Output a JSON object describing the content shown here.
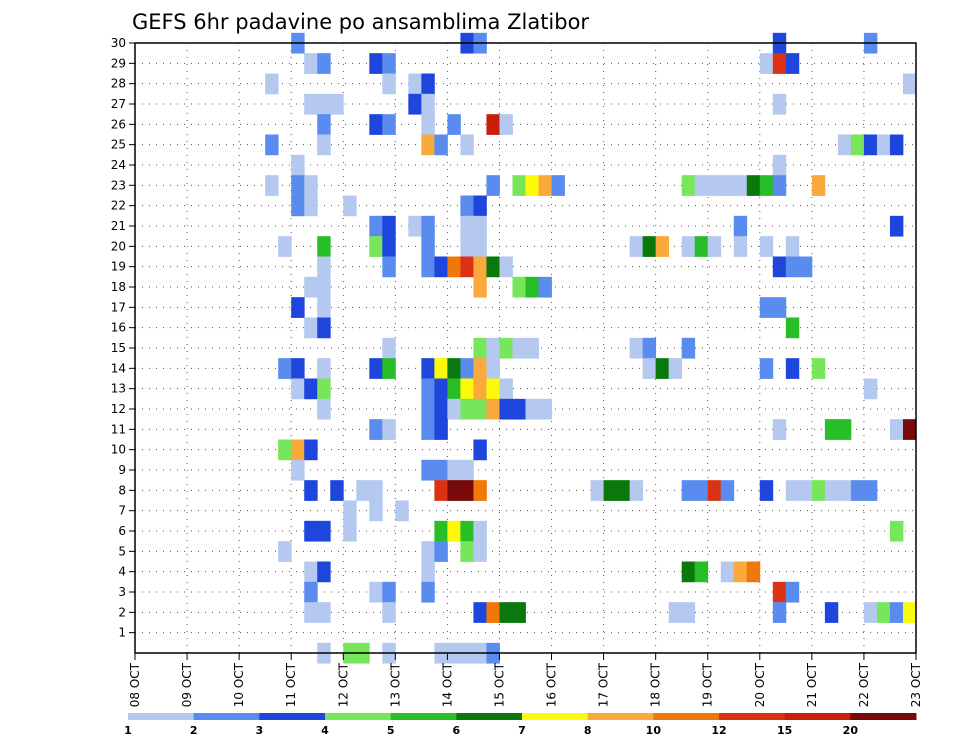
{
  "chart_data": {
    "type": "heatmap",
    "title": "GEFS 6hr padavine po ansamblima Zlatibor",
    "xlabel": "",
    "ylabel": "",
    "x_ticks": [
      "08 OCT",
      "09 OCT",
      "10 OCT",
      "11 OCT",
      "12 OCT",
      "13 OCT",
      "14 OCT",
      "15 OCT",
      "16 OCT",
      "17 OCT",
      "18 OCT",
      "19 OCT",
      "20 OCT",
      "21 OCT",
      "22 OCT",
      "23 OCT"
    ],
    "x_range": [
      "2024-10-08T00",
      "2024-10-23T00"
    ],
    "x_step_hours": 6,
    "y_ticks": [
      1,
      2,
      3,
      4,
      5,
      6,
      7,
      8,
      9,
      10,
      11,
      12,
      13,
      14,
      15,
      16,
      17,
      18,
      19,
      20,
      21,
      22,
      23,
      24,
      25,
      26,
      27,
      28,
      29,
      30
    ],
    "y_range": [
      0,
      30
    ],
    "grid": true,
    "colorbar": {
      "levels": [
        1,
        2,
        3,
        4,
        5,
        6,
        7,
        8,
        10,
        12,
        15,
        20
      ],
      "colors": [
        "#b4c8f0",
        "#5a8cf0",
        "#1e46dc",
        "#78e65a",
        "#28be28",
        "#0a780a",
        "#fafa0a",
        "#faaa3c",
        "#f0780a",
        "#dc3214",
        "#c81e0a",
        "#780a0a"
      ]
    },
    "series_format": "member, date-time of 6h period start, class index (0 = 1–2 ... 11 = >20)",
    "cells": [
      [
        0,
        "2024-10-11T12",
        0
      ],
      [
        0,
        "2024-10-12T00",
        3
      ],
      [
        0,
        "2024-10-12T06",
        3
      ],
      [
        0,
        "2024-10-12T18",
        0
      ],
      [
        0,
        "2024-10-13T18",
        0
      ],
      [
        0,
        "2024-10-14T00",
        0
      ],
      [
        0,
        "2024-10-14T06",
        0
      ],
      [
        0,
        "2024-10-14T12",
        0
      ],
      [
        0,
        "2024-10-14T18",
        1
      ],
      [
        30,
        "2024-10-11T00",
        1
      ],
      [
        30,
        "2024-10-14T06",
        2
      ],
      [
        30,
        "2024-10-14T12",
        1
      ],
      [
        30,
        "2024-10-20T06",
        2
      ],
      [
        30,
        "2024-10-22T00",
        1
      ],
      [
        29,
        "2024-10-11T06",
        0
      ],
      [
        29,
        "2024-10-11T12",
        1
      ],
      [
        29,
        "2024-10-12T12",
        2
      ],
      [
        29,
        "2024-10-12T18",
        1
      ],
      [
        29,
        "2024-10-20T00",
        0
      ],
      [
        29,
        "2024-10-20T06",
        9
      ],
      [
        29,
        "2024-10-20T12",
        2
      ],
      [
        28,
        "2024-10-10T12",
        0
      ],
      [
        28,
        "2024-10-12T18",
        0
      ],
      [
        28,
        "2024-10-13T06",
        0
      ],
      [
        28,
        "2024-10-13T12",
        2
      ],
      [
        28,
        "2024-10-22T18",
        0
      ],
      [
        27,
        "2024-10-11T06",
        0
      ],
      [
        27,
        "2024-10-11T12",
        0
      ],
      [
        27,
        "2024-10-11T18",
        0
      ],
      [
        27,
        "2024-10-13T06",
        2
      ],
      [
        27,
        "2024-10-13T12",
        0
      ],
      [
        27,
        "2024-10-20T06",
        0
      ],
      [
        26,
        "2024-10-11T12",
        1
      ],
      [
        26,
        "2024-10-12T12",
        2
      ],
      [
        26,
        "2024-10-12T18",
        1
      ],
      [
        26,
        "2024-10-13T12",
        0
      ],
      [
        26,
        "2024-10-14T00",
        1
      ],
      [
        26,
        "2024-10-14T18",
        10
      ],
      [
        26,
        "2024-10-15T00",
        0
      ],
      [
        25,
        "2024-10-10T12",
        1
      ],
      [
        25,
        "2024-10-11T12",
        0
      ],
      [
        25,
        "2024-10-13T12",
        7
      ],
      [
        25,
        "2024-10-13T18",
        1
      ],
      [
        25,
        "2024-10-14T06",
        0
      ],
      [
        25,
        "2024-10-21T12",
        0
      ],
      [
        25,
        "2024-10-21T18",
        3
      ],
      [
        25,
        "2024-10-22T00",
        2
      ],
      [
        25,
        "2024-10-22T06",
        0
      ],
      [
        25,
        "2024-10-22T12",
        2
      ],
      [
        24,
        "2024-10-11T00",
        0
      ],
      [
        24,
        "2024-10-20T06",
        0
      ],
      [
        23,
        "2024-10-10T12",
        0
      ],
      [
        23,
        "2024-10-11T00",
        1
      ],
      [
        23,
        "2024-10-11T06",
        0
      ],
      [
        23,
        "2024-10-14T18",
        1
      ],
      [
        23,
        "2024-10-15T06",
        3
      ],
      [
        23,
        "2024-10-15T12",
        6
      ],
      [
        23,
        "2024-10-15T18",
        7
      ],
      [
        23,
        "2024-10-16T00",
        1
      ],
      [
        23,
        "2024-10-18T12",
        3
      ],
      [
        23,
        "2024-10-18T18",
        0
      ],
      [
        23,
        "2024-10-19T00",
        0
      ],
      [
        23,
        "2024-10-19T06",
        0
      ],
      [
        23,
        "2024-10-19T12",
        0
      ],
      [
        23,
        "2024-10-19T18",
        5
      ],
      [
        23,
        "2024-10-20T00",
        4
      ],
      [
        23,
        "2024-10-20T06",
        1
      ],
      [
        23,
        "2024-10-21T00",
        7
      ],
      [
        22,
        "2024-10-11T00",
        1
      ],
      [
        22,
        "2024-10-11T06",
        0
      ],
      [
        22,
        "2024-10-12T00",
        0
      ],
      [
        22,
        "2024-10-14T06",
        1
      ],
      [
        22,
        "2024-10-14T12",
        2
      ],
      [
        21,
        "2024-10-12T12",
        1
      ],
      [
        21,
        "2024-10-12T18",
        2
      ],
      [
        21,
        "2024-10-13T06",
        0
      ],
      [
        21,
        "2024-10-13T12",
        1
      ],
      [
        21,
        "2024-10-14T06",
        0
      ],
      [
        21,
        "2024-10-14T12",
        0
      ],
      [
        21,
        "2024-10-19T12",
        1
      ],
      [
        21,
        "2024-10-22T12",
        2
      ],
      [
        20,
        "2024-10-10T18",
        0
      ],
      [
        20,
        "2024-10-11T12",
        4
      ],
      [
        20,
        "2024-10-12T12",
        3
      ],
      [
        20,
        "2024-10-12T18",
        2
      ],
      [
        20,
        "2024-10-13T12",
        1
      ],
      [
        20,
        "2024-10-14T06",
        0
      ],
      [
        20,
        "2024-10-14T12",
        0
      ],
      [
        20,
        "2024-10-17T12",
        0
      ],
      [
        20,
        "2024-10-17T18",
        5
      ],
      [
        20,
        "2024-10-18T00",
        7
      ],
      [
        20,
        "2024-10-18T12",
        0
      ],
      [
        20,
        "2024-10-18T18",
        4
      ],
      [
        20,
        "2024-10-19T00",
        0
      ],
      [
        20,
        "2024-10-19T12",
        0
      ],
      [
        20,
        "2024-10-20T00",
        0
      ],
      [
        20,
        "2024-10-20T12",
        0
      ],
      [
        19,
        "2024-10-11T12",
        0
      ],
      [
        19,
        "2024-10-12T18",
        1
      ],
      [
        19,
        "2024-10-13T12",
        1
      ],
      [
        19,
        "2024-10-13T18",
        2
      ],
      [
        19,
        "2024-10-14T00",
        8
      ],
      [
        19,
        "2024-10-14T06",
        9
      ],
      [
        19,
        "2024-10-14T12",
        7
      ],
      [
        19,
        "2024-10-14T18",
        5
      ],
      [
        19,
        "2024-10-15T00",
        0
      ],
      [
        19,
        "2024-10-20T06",
        2
      ],
      [
        19,
        "2024-10-20T12",
        1
      ],
      [
        19,
        "2024-10-20T18",
        1
      ],
      [
        18,
        "2024-10-11T06",
        0
      ],
      [
        18,
        "2024-10-11T12",
        0
      ],
      [
        18,
        "2024-10-14T12",
        7
      ],
      [
        18,
        "2024-10-15T06",
        3
      ],
      [
        18,
        "2024-10-15T12",
        4
      ],
      [
        18,
        "2024-10-15T18",
        1
      ],
      [
        17,
        "2024-10-11T00",
        2
      ],
      [
        17,
        "2024-10-11T12",
        0
      ],
      [
        17,
        "2024-10-20T00",
        1
      ],
      [
        17,
        "2024-10-20T06",
        1
      ],
      [
        16,
        "2024-10-11T06",
        0
      ],
      [
        16,
        "2024-10-11T12",
        2
      ],
      [
        16,
        "2024-10-20T12",
        4
      ],
      [
        15,
        "2024-10-12T18",
        0
      ],
      [
        15,
        "2024-10-14T12",
        3
      ],
      [
        15,
        "2024-10-14T18",
        0
      ],
      [
        15,
        "2024-10-15T00",
        3
      ],
      [
        15,
        "2024-10-15T06",
        0
      ],
      [
        15,
        "2024-10-15T12",
        0
      ],
      [
        15,
        "2024-10-17T12",
        0
      ],
      [
        15,
        "2024-10-17T18",
        1
      ],
      [
        15,
        "2024-10-18T12",
        1
      ],
      [
        14,
        "2024-10-10T18",
        1
      ],
      [
        14,
        "2024-10-11T00",
        2
      ],
      [
        14,
        "2024-10-11T12",
        0
      ],
      [
        14,
        "2024-10-12T12",
        2
      ],
      [
        14,
        "2024-10-12T18",
        4
      ],
      [
        14,
        "2024-10-13T12",
        2
      ],
      [
        14,
        "2024-10-13T18",
        6
      ],
      [
        14,
        "2024-10-14T00",
        5
      ],
      [
        14,
        "2024-10-14T06",
        1
      ],
      [
        14,
        "2024-10-14T12",
        7
      ],
      [
        14,
        "2024-10-14T18",
        0
      ],
      [
        14,
        "2024-10-17T18",
        0
      ],
      [
        14,
        "2024-10-18T00",
        5
      ],
      [
        14,
        "2024-10-18T06",
        0
      ],
      [
        14,
        "2024-10-20T00",
        1
      ],
      [
        14,
        "2024-10-20T12",
        2
      ],
      [
        14,
        "2024-10-21T00",
        3
      ],
      [
        13,
        "2024-10-11T00",
        0
      ],
      [
        13,
        "2024-10-11T06",
        2
      ],
      [
        13,
        "2024-10-11T12",
        3
      ],
      [
        13,
        "2024-10-13T12",
        1
      ],
      [
        13,
        "2024-10-13T18",
        2
      ],
      [
        13,
        "2024-10-14T00",
        4
      ],
      [
        13,
        "2024-10-14T06",
        6
      ],
      [
        13,
        "2024-10-14T12",
        7
      ],
      [
        13,
        "2024-10-14T18",
        6
      ],
      [
        13,
        "2024-10-15T00",
        0
      ],
      [
        13,
        "2024-10-22T00",
        0
      ],
      [
        12,
        "2024-10-11T12",
        0
      ],
      [
        12,
        "2024-10-13T12",
        1
      ],
      [
        12,
        "2024-10-13T18",
        2
      ],
      [
        12,
        "2024-10-14T00",
        0
      ],
      [
        12,
        "2024-10-14T06",
        3
      ],
      [
        12,
        "2024-10-14T12",
        3
      ],
      [
        12,
        "2024-10-14T18",
        7
      ],
      [
        12,
        "2024-10-15T00",
        2
      ],
      [
        12,
        "2024-10-15T06",
        2
      ],
      [
        12,
        "2024-10-15T12",
        0
      ],
      [
        12,
        "2024-10-15T18",
        0
      ],
      [
        11,
        "2024-10-12T12",
        1
      ],
      [
        11,
        "2024-10-12T18",
        0
      ],
      [
        11,
        "2024-10-13T12",
        1
      ],
      [
        11,
        "2024-10-13T18",
        2
      ],
      [
        11,
        "2024-10-20T06",
        0
      ],
      [
        11,
        "2024-10-21T06",
        4
      ],
      [
        11,
        "2024-10-21T12",
        4
      ],
      [
        11,
        "2024-10-22T12",
        0
      ],
      [
        11,
        "2024-10-22T18",
        11
      ],
      [
        10,
        "2024-10-10T18",
        3
      ],
      [
        10,
        "2024-10-11T00",
        7
      ],
      [
        10,
        "2024-10-11T06",
        2
      ],
      [
        10,
        "2024-10-14T12",
        2
      ],
      [
        9,
        "2024-10-11T00",
        0
      ],
      [
        9,
        "2024-10-13T12",
        1
      ],
      [
        9,
        "2024-10-13T18",
        1
      ],
      [
        9,
        "2024-10-14T00",
        0
      ],
      [
        9,
        "2024-10-14T06",
        0
      ],
      [
        8,
        "2024-10-11T06",
        2
      ],
      [
        8,
        "2024-10-11T18",
        2
      ],
      [
        8,
        "2024-10-12T06",
        0
      ],
      [
        8,
        "2024-10-12T12",
        0
      ],
      [
        8,
        "2024-10-13T18",
        9
      ],
      [
        8,
        "2024-10-14T00",
        11
      ],
      [
        8,
        "2024-10-14T06",
        11
      ],
      [
        8,
        "2024-10-14T12",
        8
      ],
      [
        8,
        "2024-10-16T18",
        0
      ],
      [
        8,
        "2024-10-17T00",
        5
      ],
      [
        8,
        "2024-10-17T06",
        5
      ],
      [
        8,
        "2024-10-17T12",
        0
      ],
      [
        8,
        "2024-10-18T12",
        1
      ],
      [
        8,
        "2024-10-18T18",
        1
      ],
      [
        8,
        "2024-10-19T00",
        9
      ],
      [
        8,
        "2024-10-19T06",
        1
      ],
      [
        8,
        "2024-10-20T00",
        2
      ],
      [
        8,
        "2024-10-20T12",
        0
      ],
      [
        8,
        "2024-10-20T18",
        0
      ],
      [
        8,
        "2024-10-21T00",
        3
      ],
      [
        8,
        "2024-10-21T06",
        0
      ],
      [
        8,
        "2024-10-21T12",
        0
      ],
      [
        8,
        "2024-10-21T18",
        1
      ],
      [
        8,
        "2024-10-22T00",
        1
      ],
      [
        7,
        "2024-10-12T00",
        0
      ],
      [
        7,
        "2024-10-12T12",
        0
      ],
      [
        7,
        "2024-10-13T00",
        0
      ],
      [
        6,
        "2024-10-11T06",
        2
      ],
      [
        6,
        "2024-10-11T12",
        2
      ],
      [
        6,
        "2024-10-12T00",
        0
      ],
      [
        6,
        "2024-10-13T18",
        4
      ],
      [
        6,
        "2024-10-14T00",
        6
      ],
      [
        6,
        "2024-10-14T06",
        4
      ],
      [
        6,
        "2024-10-14T12",
        0
      ],
      [
        6,
        "2024-10-22T12",
        3
      ],
      [
        5,
        "2024-10-10T18",
        0
      ],
      [
        5,
        "2024-10-13T12",
        0
      ],
      [
        5,
        "2024-10-13T18",
        1
      ],
      [
        5,
        "2024-10-14T06",
        3
      ],
      [
        5,
        "2024-10-14T12",
        0
      ],
      [
        4,
        "2024-10-11T06",
        0
      ],
      [
        4,
        "2024-10-11T12",
        2
      ],
      [
        4,
        "2024-10-13T12",
        0
      ],
      [
        4,
        "2024-10-18T12",
        5
      ],
      [
        4,
        "2024-10-18T18",
        4
      ],
      [
        4,
        "2024-10-19T06",
        0
      ],
      [
        4,
        "2024-10-19T12",
        7
      ],
      [
        4,
        "2024-10-19T18",
        8
      ],
      [
        3,
        "2024-10-11T06",
        1
      ],
      [
        3,
        "2024-10-12T12",
        0
      ],
      [
        3,
        "2024-10-12T18",
        1
      ],
      [
        3,
        "2024-10-13T12",
        1
      ],
      [
        3,
        "2024-10-20T06",
        9
      ],
      [
        3,
        "2024-10-20T12",
        1
      ],
      [
        2,
        "2024-10-11T06",
        0
      ],
      [
        2,
        "2024-10-11T12",
        0
      ],
      [
        2,
        "2024-10-12T18",
        0
      ],
      [
        2,
        "2024-10-14T12",
        2
      ],
      [
        2,
        "2024-10-14T18",
        8
      ],
      [
        2,
        "2024-10-15T00",
        5
      ],
      [
        2,
        "2024-10-15T06",
        5
      ],
      [
        2,
        "2024-10-18T06",
        0
      ],
      [
        2,
        "2024-10-18T12",
        0
      ],
      [
        2,
        "2024-10-20T06",
        1
      ],
      [
        2,
        "2024-10-21T06",
        2
      ],
      [
        2,
        "2024-10-22T00",
        0
      ],
      [
        2,
        "2024-10-22T06",
        3
      ],
      [
        2,
        "2024-10-22T12",
        1
      ],
      [
        2,
        "2024-10-22T18",
        6
      ]
    ]
  }
}
